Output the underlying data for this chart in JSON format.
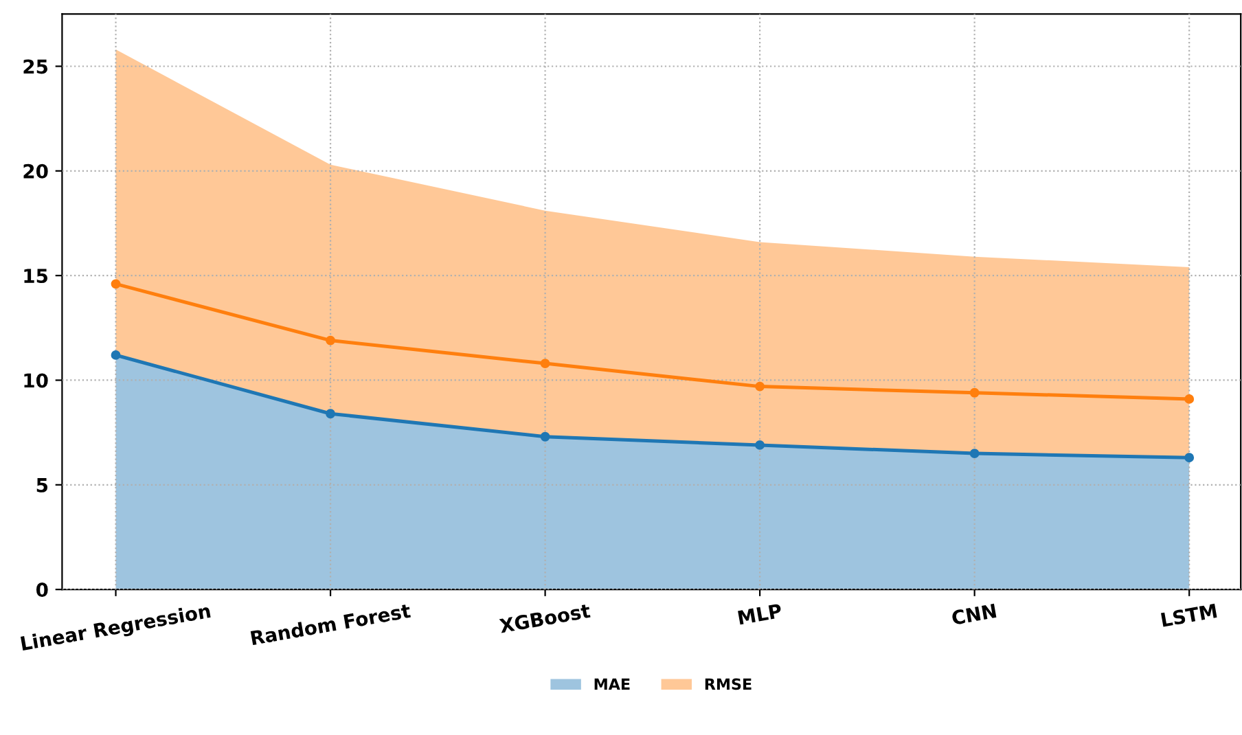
{
  "chart_data": {
    "type": "area",
    "stacked": true,
    "categories": [
      "Linear Regression",
      "Random Forest",
      "XGBoost",
      "MLP",
      "CNN",
      "LSTM"
    ],
    "series": [
      {
        "name": "MAE",
        "marker": "circle",
        "color": "#1f77b4",
        "values": [
          11.2,
          8.4,
          7.3,
          6.9,
          6.5,
          6.3
        ]
      },
      {
        "name": "RMSE",
        "color": "#ff7f0e",
        "values": [
          14.6,
          11.9,
          10.8,
          9.7,
          9.4,
          9.1
        ]
      },
      {
        "type": "line",
        "marker": "circle",
        "color": "#ff7f0e",
        "values": [
          14.6,
          11.9,
          10.8,
          9.7,
          9.4,
          9.1
        ]
      }
    ],
    "ylim": [
      0,
      27.5
    ],
    "yticks": [
      0,
      5,
      10,
      15,
      20,
      25
    ],
    "grid": true,
    "legend": "bottom",
    "line_style": "solid"
  }
}
